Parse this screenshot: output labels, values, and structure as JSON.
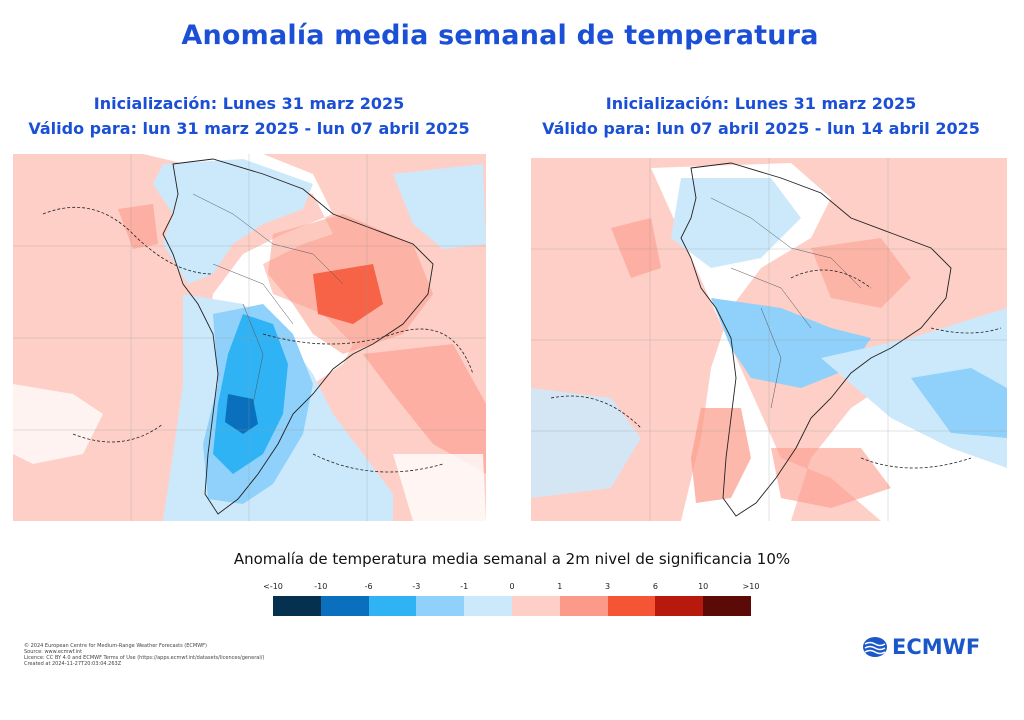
{
  "title": "Anomalía  media semanal de temperatura",
  "panels": [
    {
      "init_text": "Inicialización: Lunes 31 marz 2025",
      "valid_text": "Válido para: lun 31 marz 2025 - lun 07 abril 2025"
    },
    {
      "init_text": "Inicialización: Lunes 31 marz 2025",
      "valid_text": "Válido para: lun 07 abril 2025 - lun 14 abril 2025"
    }
  ],
  "legend": {
    "title": "Anomalía de temperatura media semanal a 2m nivel de significancia 10%",
    "labels": [
      "<-10",
      "-10",
      "-6",
      "-3",
      "-1",
      "0",
      "1",
      "3",
      "6",
      "10",
      ">10"
    ],
    "colors": [
      "#06304f",
      "#0a70bd",
      "#2fb3f4",
      "#8fd1fa",
      "#cce9fb",
      "#ffffff",
      "#fdcfc7",
      "#fb9a88",
      "#f55535",
      "#b71a0c",
      "#5c0a08"
    ]
  },
  "credits": [
    "© 2024 European Centre for Medium-Range Weather Forecasts (ECMWF)",
    "Source: www.ecmwf.int",
    "Licence: CC BY 4.0 and ECMWF Terms of Use (https://apps.ecmwf.int/datasets/licences/general/)",
    "Created at 2024-11-27T20:03:04.263Z"
  ],
  "logo": {
    "text": "ECMWF",
    "color": "#1b57c9"
  }
}
